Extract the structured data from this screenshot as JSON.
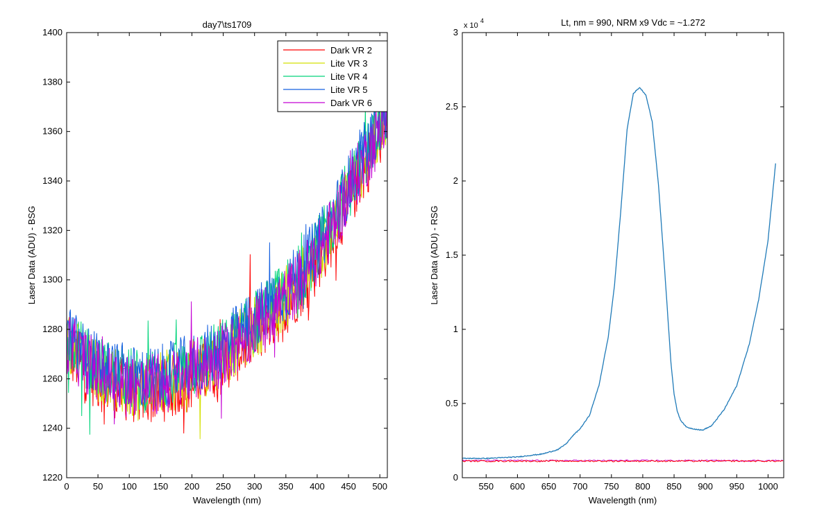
{
  "chart_data": [
    {
      "type": "line",
      "title": "day7\\ts1709",
      "xlabel": "Wavelength (nm)",
      "ylabel": "Laser Data (ADU) - BSG",
      "xlim": [
        0,
        512
      ],
      "ylim": [
        1220,
        1400
      ],
      "xticks": [
        0,
        50,
        100,
        150,
        200,
        250,
        300,
        350,
        400,
        450,
        500
      ],
      "yticks": [
        1220,
        1240,
        1260,
        1280,
        1300,
        1320,
        1340,
        1360,
        1380,
        1400
      ],
      "grid": false,
      "legend_position": "top-right",
      "trend": {
        "x": [
          0,
          25,
          50,
          75,
          100,
          125,
          150,
          175,
          200,
          225,
          250,
          275,
          300,
          325,
          350,
          375,
          400,
          425,
          450,
          475,
          500,
          512
        ],
        "y": [
          1275,
          1268,
          1263,
          1260,
          1258,
          1257,
          1258,
          1260,
          1263,
          1266,
          1270,
          1275,
          1281,
          1287,
          1293,
          1301,
          1310,
          1322,
          1335,
          1348,
          1360,
          1366
        ]
      },
      "series": [
        {
          "name": "Dark VR 2",
          "color": "#ff0000",
          "offset": -3
        },
        {
          "name": "Lite VR 3",
          "color": "#d4e000",
          "offset": 0
        },
        {
          "name": "Lite VR 4",
          "color": "#00d47a",
          "offset": 2
        },
        {
          "name": "Lite VR 5",
          "color": "#1560e0",
          "offset": 3
        },
        {
          "name": "Dark VR 6",
          "color": "#c400d4",
          "offset": 0
        }
      ]
    },
    {
      "type": "line",
      "title": "Lt, nm = 990, NRM x9 Vdc = ~1.272",
      "xlabel": "Wavelength (nm)",
      "ylabel": "Laser Data (ADU) - RSG",
      "y_exponent_label": "x 10",
      "y_exponent": "4",
      "xlim": [
        512,
        1025
      ],
      "ylim": [
        0,
        3
      ],
      "xticks": [
        550,
        600,
        650,
        700,
        750,
        800,
        850,
        900,
        950,
        1000
      ],
      "yticks": [
        0,
        0.5,
        1,
        1.5,
        2,
        2.5,
        3
      ],
      "ytick_labels": [
        "0",
        "0.5",
        "1",
        "1.5",
        "2",
        "2.5",
        "3"
      ],
      "grid": false,
      "series": [
        {
          "color": "#1f7ab8",
          "x": [
            512,
            550,
            600,
            640,
            665,
            678,
            690,
            700,
            715,
            730,
            745,
            755,
            765,
            775,
            785,
            795,
            805,
            815,
            825,
            835,
            845,
            850,
            855,
            860,
            870,
            880,
            895,
            910,
            930,
            950,
            970,
            985,
            1000,
            1012
          ],
          "y": [
            0.13,
            0.13,
            0.14,
            0.16,
            0.19,
            0.23,
            0.29,
            0.33,
            0.42,
            0.62,
            0.95,
            1.3,
            1.8,
            2.35,
            2.59,
            2.63,
            2.58,
            2.4,
            1.98,
            1.4,
            0.78,
            0.56,
            0.45,
            0.39,
            0.34,
            0.33,
            0.32,
            0.35,
            0.46,
            0.62,
            0.9,
            1.2,
            1.6,
            2.12
          ]
        },
        {
          "color": "#c400d4",
          "x": [
            512,
            1025
          ],
          "y": [
            0.115,
            0.115
          ]
        },
        {
          "color": "#ff0000",
          "x": [
            512,
            1025
          ],
          "y": [
            0.112,
            0.112
          ]
        }
      ]
    }
  ]
}
